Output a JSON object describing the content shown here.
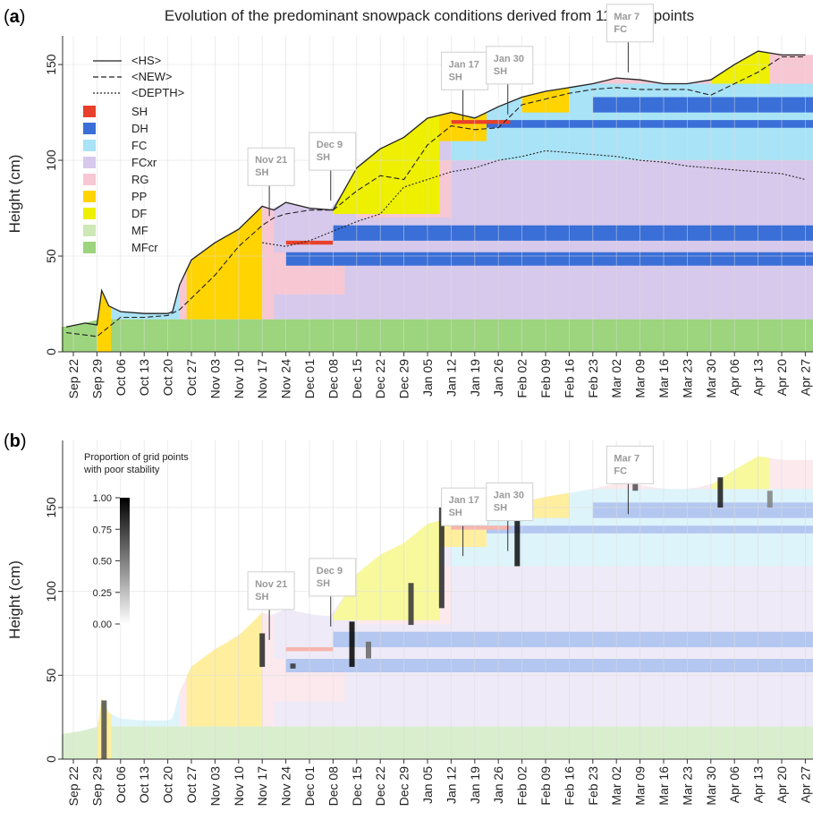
{
  "figure": {
    "panel_a_label": "a",
    "panel_b_label": "b",
    "title": "Evolution of the predominant snowpack conditions derived from 112 grid points"
  },
  "legend": {
    "lines": [
      {
        "label": "<HS>",
        "style": "solid"
      },
      {
        "label": "<NEW>",
        "style": "dashed"
      },
      {
        "label": "<DEPTH>",
        "style": "dotted"
      }
    ],
    "classes": [
      {
        "label": "SH",
        "color": "#e8402a"
      },
      {
        "label": "DH",
        "color": "#3a6fd8"
      },
      {
        "label": "FC",
        "color": "#a9e3f7"
      },
      {
        "label": "FCxr",
        "color": "#d6c9ec"
      },
      {
        "label": "RG",
        "color": "#f7c7d3"
      },
      {
        "label": "PP",
        "color": "#ffd400"
      },
      {
        "label": "DF",
        "color": "#eef000"
      },
      {
        "label": "MF",
        "color": "#cde8b5"
      },
      {
        "label": "MFcr",
        "color": "#9dd47e"
      }
    ]
  },
  "colorbar": {
    "title_line1": "Proportion of grid points",
    "title_line2": "with poor stability",
    "ticks": [
      "1.00",
      "0.75",
      "0.50",
      "0.25",
      "0.00"
    ]
  },
  "annotations": [
    {
      "line1": "Nov 21",
      "line2": "SH",
      "date_index": 8.3,
      "h": 70
    },
    {
      "line1": "Dec 9",
      "line2": "SH",
      "date_index": 10.9,
      "h": 78
    },
    {
      "line1": "Jan 17",
      "line2": "SH",
      "date_index": 16.5,
      "h": 120
    },
    {
      "line1": "Jan 30",
      "line2": "SH",
      "date_index": 18.4,
      "h": 123
    },
    {
      "line1": "Mar 7",
      "line2": "FC",
      "date_index": 23.5,
      "h": 145
    }
  ],
  "chart_data": [
    {
      "type": "area",
      "title": "Evolution of the predominant snowpack conditions derived from 112 grid points",
      "ylabel": "Height (cm)",
      "xlabel": "",
      "ylim": [
        0,
        165
      ],
      "yticks": [
        0,
        50,
        100,
        150
      ],
      "grid": true,
      "legend_position": "top-left",
      "categories": [
        "Sep 22",
        "Sep 29",
        "Oct 06",
        "Oct 13",
        "Oct 20",
        "Oct 27",
        "Nov 03",
        "Nov 10",
        "Nov 17",
        "Nov 24",
        "Dec 01",
        "Dec 08",
        "Dec 15",
        "Dec 22",
        "Dec 29",
        "Jan 05",
        "Jan 12",
        "Jan 19",
        "Jan 26",
        "Feb 02",
        "Feb 09",
        "Feb 16",
        "Feb 23",
        "Mar 02",
        "Mar 09",
        "Mar 16",
        "Mar 23",
        "Mar 30",
        "Apr 06",
        "Apr 13",
        "Apr 20",
        "Apr 27"
      ],
      "series": [
        {
          "name": "<HS>",
          "x": [
            -0.3,
            0.5,
            1,
            1.2,
            1.5,
            2,
            3,
            4,
            4.2,
            4.5,
            5,
            6,
            7,
            8,
            8.5,
            9,
            10,
            11,
            12,
            13,
            14,
            15,
            16,
            17,
            18,
            19,
            20,
            21,
            22,
            23,
            24,
            25,
            26,
            27,
            28,
            29,
            30,
            31
          ],
          "values": [
            13,
            15,
            14,
            32,
            24,
            21,
            20,
            20,
            21,
            35,
            48,
            57,
            64,
            76,
            74,
            78,
            75,
            74,
            96,
            106,
            112,
            122,
            125,
            122,
            128,
            133,
            136,
            138,
            140,
            143,
            142,
            140,
            140,
            142,
            150,
            157,
            155,
            155
          ]
        },
        {
          "name": "<NEW>",
          "x": [
            -0.3,
            1,
            2,
            3,
            4,
            4.5,
            5,
            6,
            7,
            8,
            8.5,
            9,
            10,
            11,
            12,
            13,
            14,
            15,
            16,
            17,
            18,
            19,
            20,
            21,
            22,
            23,
            24,
            25,
            26,
            27,
            28,
            29,
            30,
            31
          ],
          "values": [
            10,
            8,
            18,
            18,
            19,
            22,
            28,
            40,
            55,
            66,
            70,
            72,
            74,
            74,
            84,
            92,
            90,
            108,
            118,
            116,
            117,
            129,
            132,
            135,
            137,
            138,
            137,
            137,
            137,
            134,
            140,
            146,
            154,
            154
          ]
        },
        {
          "name": "<DEPTH>",
          "x": [
            8,
            9,
            10,
            11,
            12,
            13,
            14,
            15,
            16,
            17,
            18,
            19,
            20,
            21,
            22,
            23,
            24,
            25,
            26,
            27,
            28,
            29,
            30,
            31
          ],
          "values": [
            57,
            55,
            58,
            63,
            68,
            72,
            86,
            90,
            94,
            96,
            100,
            102,
            105,
            104,
            103,
            102,
            100,
            99,
            97,
            96,
            95,
            94,
            93,
            90
          ]
        }
      ]
    },
    {
      "type": "heatmap",
      "title": "",
      "ylabel": "Height (cm)",
      "xlabel": "",
      "ylim": [
        0,
        190
      ],
      "yticks": [
        0,
        50,
        100,
        150
      ],
      "grid": true,
      "categories": [
        "Sep 22",
        "Sep 29",
        "Oct 06",
        "Oct 13",
        "Oct 20",
        "Oct 27",
        "Nov 03",
        "Nov 10",
        "Nov 17",
        "Nov 24",
        "Dec 01",
        "Dec 08",
        "Dec 15",
        "Dec 22",
        "Dec 29",
        "Jan 05",
        "Jan 12",
        "Jan 19",
        "Jan 26",
        "Feb 02",
        "Feb 09",
        "Feb 16",
        "Feb 23",
        "Mar 02",
        "Mar 09",
        "Mar 16",
        "Mar 23",
        "Mar 30",
        "Apr 06",
        "Apr 13",
        "Apr 20",
        "Apr 27"
      ],
      "colorbar_range": [
        0,
        1
      ],
      "poor_stability_spots": [
        {
          "x": 1.3,
          "h0": 0,
          "h1": 35,
          "value": 0.7
        },
        {
          "x": 8.0,
          "h0": 55,
          "h1": 75,
          "value": 0.85
        },
        {
          "x": 9.3,
          "h0": 54,
          "h1": 57,
          "value": 0.8
        },
        {
          "x": 11.8,
          "h0": 55,
          "h1": 82,
          "value": 1.0
        },
        {
          "x": 12.5,
          "h0": 60,
          "h1": 70,
          "value": 0.6
        },
        {
          "x": 14.3,
          "h0": 80,
          "h1": 105,
          "value": 0.8
        },
        {
          "x": 15.6,
          "h0": 90,
          "h1": 150,
          "value": 0.85
        },
        {
          "x": 18.8,
          "h0": 115,
          "h1": 162,
          "value": 0.95
        },
        {
          "x": 23.8,
          "h0": 160,
          "h1": 165,
          "value": 0.7
        },
        {
          "x": 27.4,
          "h0": 150,
          "h1": 168,
          "value": 0.9
        },
        {
          "x": 29.5,
          "h0": 150,
          "h1": 160,
          "value": 0.5
        }
      ]
    }
  ]
}
